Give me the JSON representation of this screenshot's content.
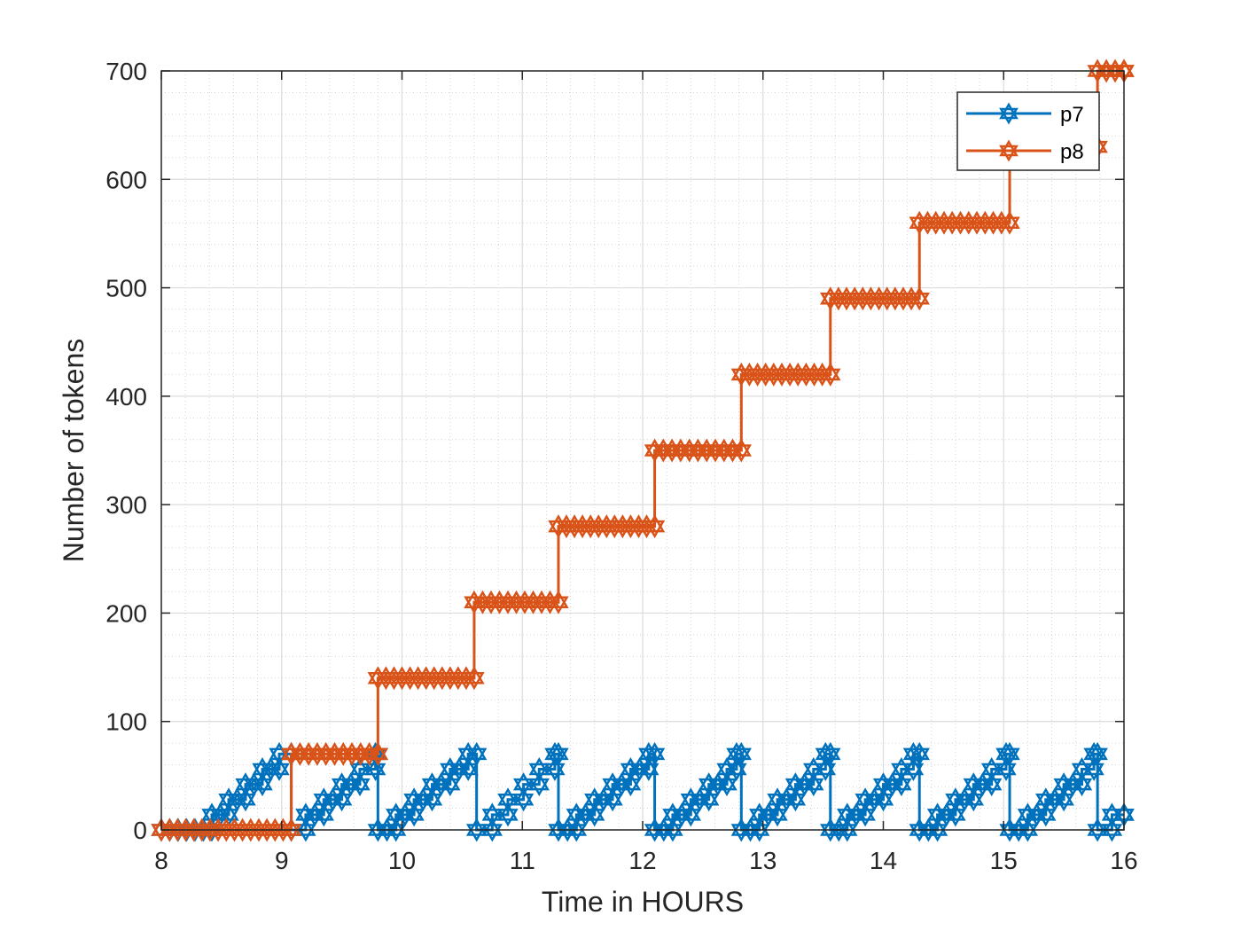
{
  "chart_data": {
    "type": "line",
    "xlabel": "Time in HOURS",
    "ylabel": "Number of tokens",
    "xlim": [
      8,
      16
    ],
    "ylim": [
      0,
      700
    ],
    "xticks": [
      8,
      9,
      10,
      11,
      12,
      13,
      14,
      15,
      16
    ],
    "yticks": [
      0,
      100,
      200,
      300,
      400,
      500,
      600,
      700
    ],
    "grid": true,
    "minor_grid": true,
    "legend_position": "top-right",
    "series": [
      {
        "name": "p7",
        "color": "#0072BD",
        "marker": "hexagram",
        "step": "post",
        "points": [
          [
            8.0,
            0
          ],
          [
            8.42,
            14
          ],
          [
            8.56,
            28
          ],
          [
            8.7,
            42
          ],
          [
            8.84,
            56
          ],
          [
            8.98,
            70
          ],
          [
            9.08,
            0
          ],
          [
            9.2,
            14
          ],
          [
            9.35,
            28
          ],
          [
            9.5,
            42
          ],
          [
            9.65,
            56
          ],
          [
            9.78,
            70
          ],
          [
            9.8,
            0
          ],
          [
            9.95,
            14
          ],
          [
            10.1,
            28
          ],
          [
            10.25,
            42
          ],
          [
            10.4,
            56
          ],
          [
            10.55,
            70
          ],
          [
            10.62,
            0
          ],
          [
            10.75,
            14
          ],
          [
            10.88,
            28
          ],
          [
            11.01,
            42
          ],
          [
            11.14,
            56
          ],
          [
            11.27,
            70
          ],
          [
            11.3,
            0
          ],
          [
            11.45,
            14
          ],
          [
            11.6,
            28
          ],
          [
            11.75,
            42
          ],
          [
            11.9,
            56
          ],
          [
            12.05,
            70
          ],
          [
            12.1,
            0
          ],
          [
            12.25,
            14
          ],
          [
            12.4,
            28
          ],
          [
            12.55,
            42
          ],
          [
            12.7,
            56
          ],
          [
            12.78,
            70
          ],
          [
            12.82,
            0
          ],
          [
            12.97,
            14
          ],
          [
            13.12,
            28
          ],
          [
            13.27,
            42
          ],
          [
            13.42,
            56
          ],
          [
            13.52,
            70
          ],
          [
            13.56,
            0
          ],
          [
            13.7,
            14
          ],
          [
            13.85,
            28
          ],
          [
            14.0,
            42
          ],
          [
            14.15,
            56
          ],
          [
            14.25,
            70
          ],
          [
            14.3,
            0
          ],
          [
            14.45,
            14
          ],
          [
            14.6,
            28
          ],
          [
            14.75,
            42
          ],
          [
            14.9,
            56
          ],
          [
            15.02,
            70
          ],
          [
            15.05,
            0
          ],
          [
            15.2,
            14
          ],
          [
            15.35,
            28
          ],
          [
            15.5,
            42
          ],
          [
            15.65,
            56
          ],
          [
            15.75,
            70
          ],
          [
            15.78,
            0
          ],
          [
            15.9,
            14
          ],
          [
            16.0,
            14
          ]
        ]
      },
      {
        "name": "p8",
        "color": "#D95319",
        "marker": "hexagram",
        "step": "post",
        "points": [
          [
            8.0,
            0
          ],
          [
            9.08,
            70
          ],
          [
            9.8,
            140
          ],
          [
            10.6,
            210
          ],
          [
            11.3,
            280
          ],
          [
            12.1,
            350
          ],
          [
            12.82,
            420
          ],
          [
            13.56,
            490
          ],
          [
            14.3,
            560
          ],
          [
            15.05,
            630
          ],
          [
            15.78,
            700
          ],
          [
            16.0,
            700
          ]
        ]
      }
    ]
  }
}
